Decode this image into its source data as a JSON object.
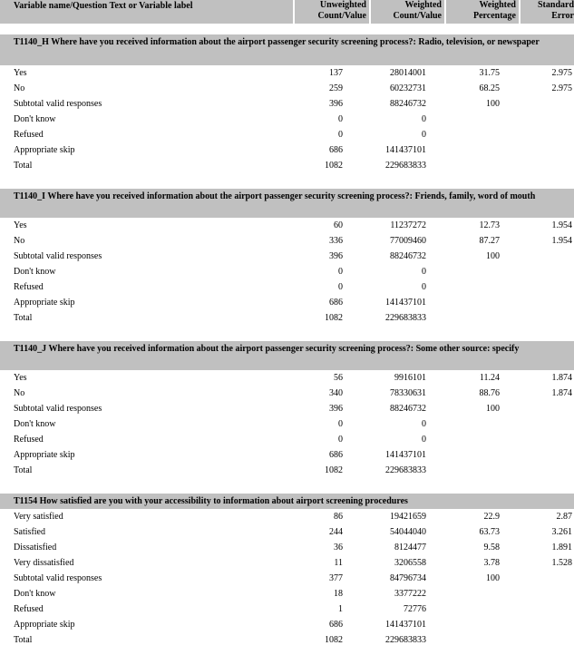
{
  "header": [
    "Variable name/Question Text or Variable label",
    "Unweighted Count/Value",
    "Weighted Count/Value",
    "Weighted Percentage",
    "Standard Error"
  ],
  "sections": [
    {
      "title": "T1140_H Where have you received information about the airport passenger security screening process?: Radio, television, or newspaper",
      "rows": [
        [
          "Yes",
          "137",
          "28014001",
          "31.75",
          "2.975"
        ],
        [
          "No",
          "259",
          "60232731",
          "68.25",
          "2.975"
        ],
        [
          "Subtotal valid responses",
          "396",
          "88246732",
          "100",
          null
        ],
        [
          "Don't know",
          "0",
          "0",
          null,
          null
        ],
        [
          "Refused",
          "0",
          "0",
          null,
          null
        ],
        [
          "Appropriate skip",
          "686",
          "141437101",
          null,
          null
        ],
        [
          "Total",
          "1082",
          "229683833",
          null,
          null
        ]
      ]
    },
    {
      "title": "T1140_I Where have you received information about the airport passenger security screening process?: Friends, family, word of mouth",
      "rows": [
        [
          "Yes",
          "60",
          "11237272",
          "12.73",
          "1.954"
        ],
        [
          "No",
          "336",
          "77009460",
          "87.27",
          "1.954"
        ],
        [
          "Subtotal valid responses",
          "396",
          "88246732",
          "100",
          null
        ],
        [
          "Don't know",
          "0",
          "0",
          null,
          null
        ],
        [
          "Refused",
          "0",
          "0",
          null,
          null
        ],
        [
          "Appropriate skip",
          "686",
          "141437101",
          null,
          null
        ],
        [
          "Total",
          "1082",
          "229683833",
          null,
          null
        ]
      ]
    },
    {
      "title": "T1140_J Where have you received information about the airport passenger security screening process?: Some other source: specify",
      "rows": [
        [
          "Yes",
          "56",
          "9916101",
          "11.24",
          "1.874"
        ],
        [
          "No",
          "340",
          "78330631",
          "88.76",
          "1.874"
        ],
        [
          "Subtotal valid responses",
          "396",
          "88246732",
          "100",
          null
        ],
        [
          "Don't know",
          "0",
          "0",
          null,
          null
        ],
        [
          "Refused",
          "0",
          "0",
          null,
          null
        ],
        [
          "Appropriate skip",
          "686",
          "141437101",
          null,
          null
        ],
        [
          "Total",
          "1082",
          "229683833",
          null,
          null
        ]
      ]
    },
    {
      "title": "T1154 How satisfied are you with your accessibility to information about airport screening procedures",
      "rows": [
        [
          "Very satisfied",
          "86",
          "19421659",
          "22.9",
          "2.87"
        ],
        [
          "Satisfied",
          "244",
          "54044040",
          "63.73",
          "3.261"
        ],
        [
          "Dissatisfied",
          "36",
          "8124477",
          "9.58",
          "1.891"
        ],
        [
          "Very dissatisfied",
          "11",
          "3206558",
          "3.78",
          "1.528"
        ],
        [
          "Subtotal valid responses",
          "377",
          "84796734",
          "100",
          null
        ],
        [
          "Don't know",
          "18",
          "3377222",
          null,
          null
        ],
        [
          "Refused",
          "1",
          "72776",
          null,
          null
        ],
        [
          "Appropriate skip",
          "686",
          "141437101",
          null,
          null
        ],
        [
          "Total",
          "1082",
          "229683833",
          null,
          null
        ]
      ]
    }
  ]
}
